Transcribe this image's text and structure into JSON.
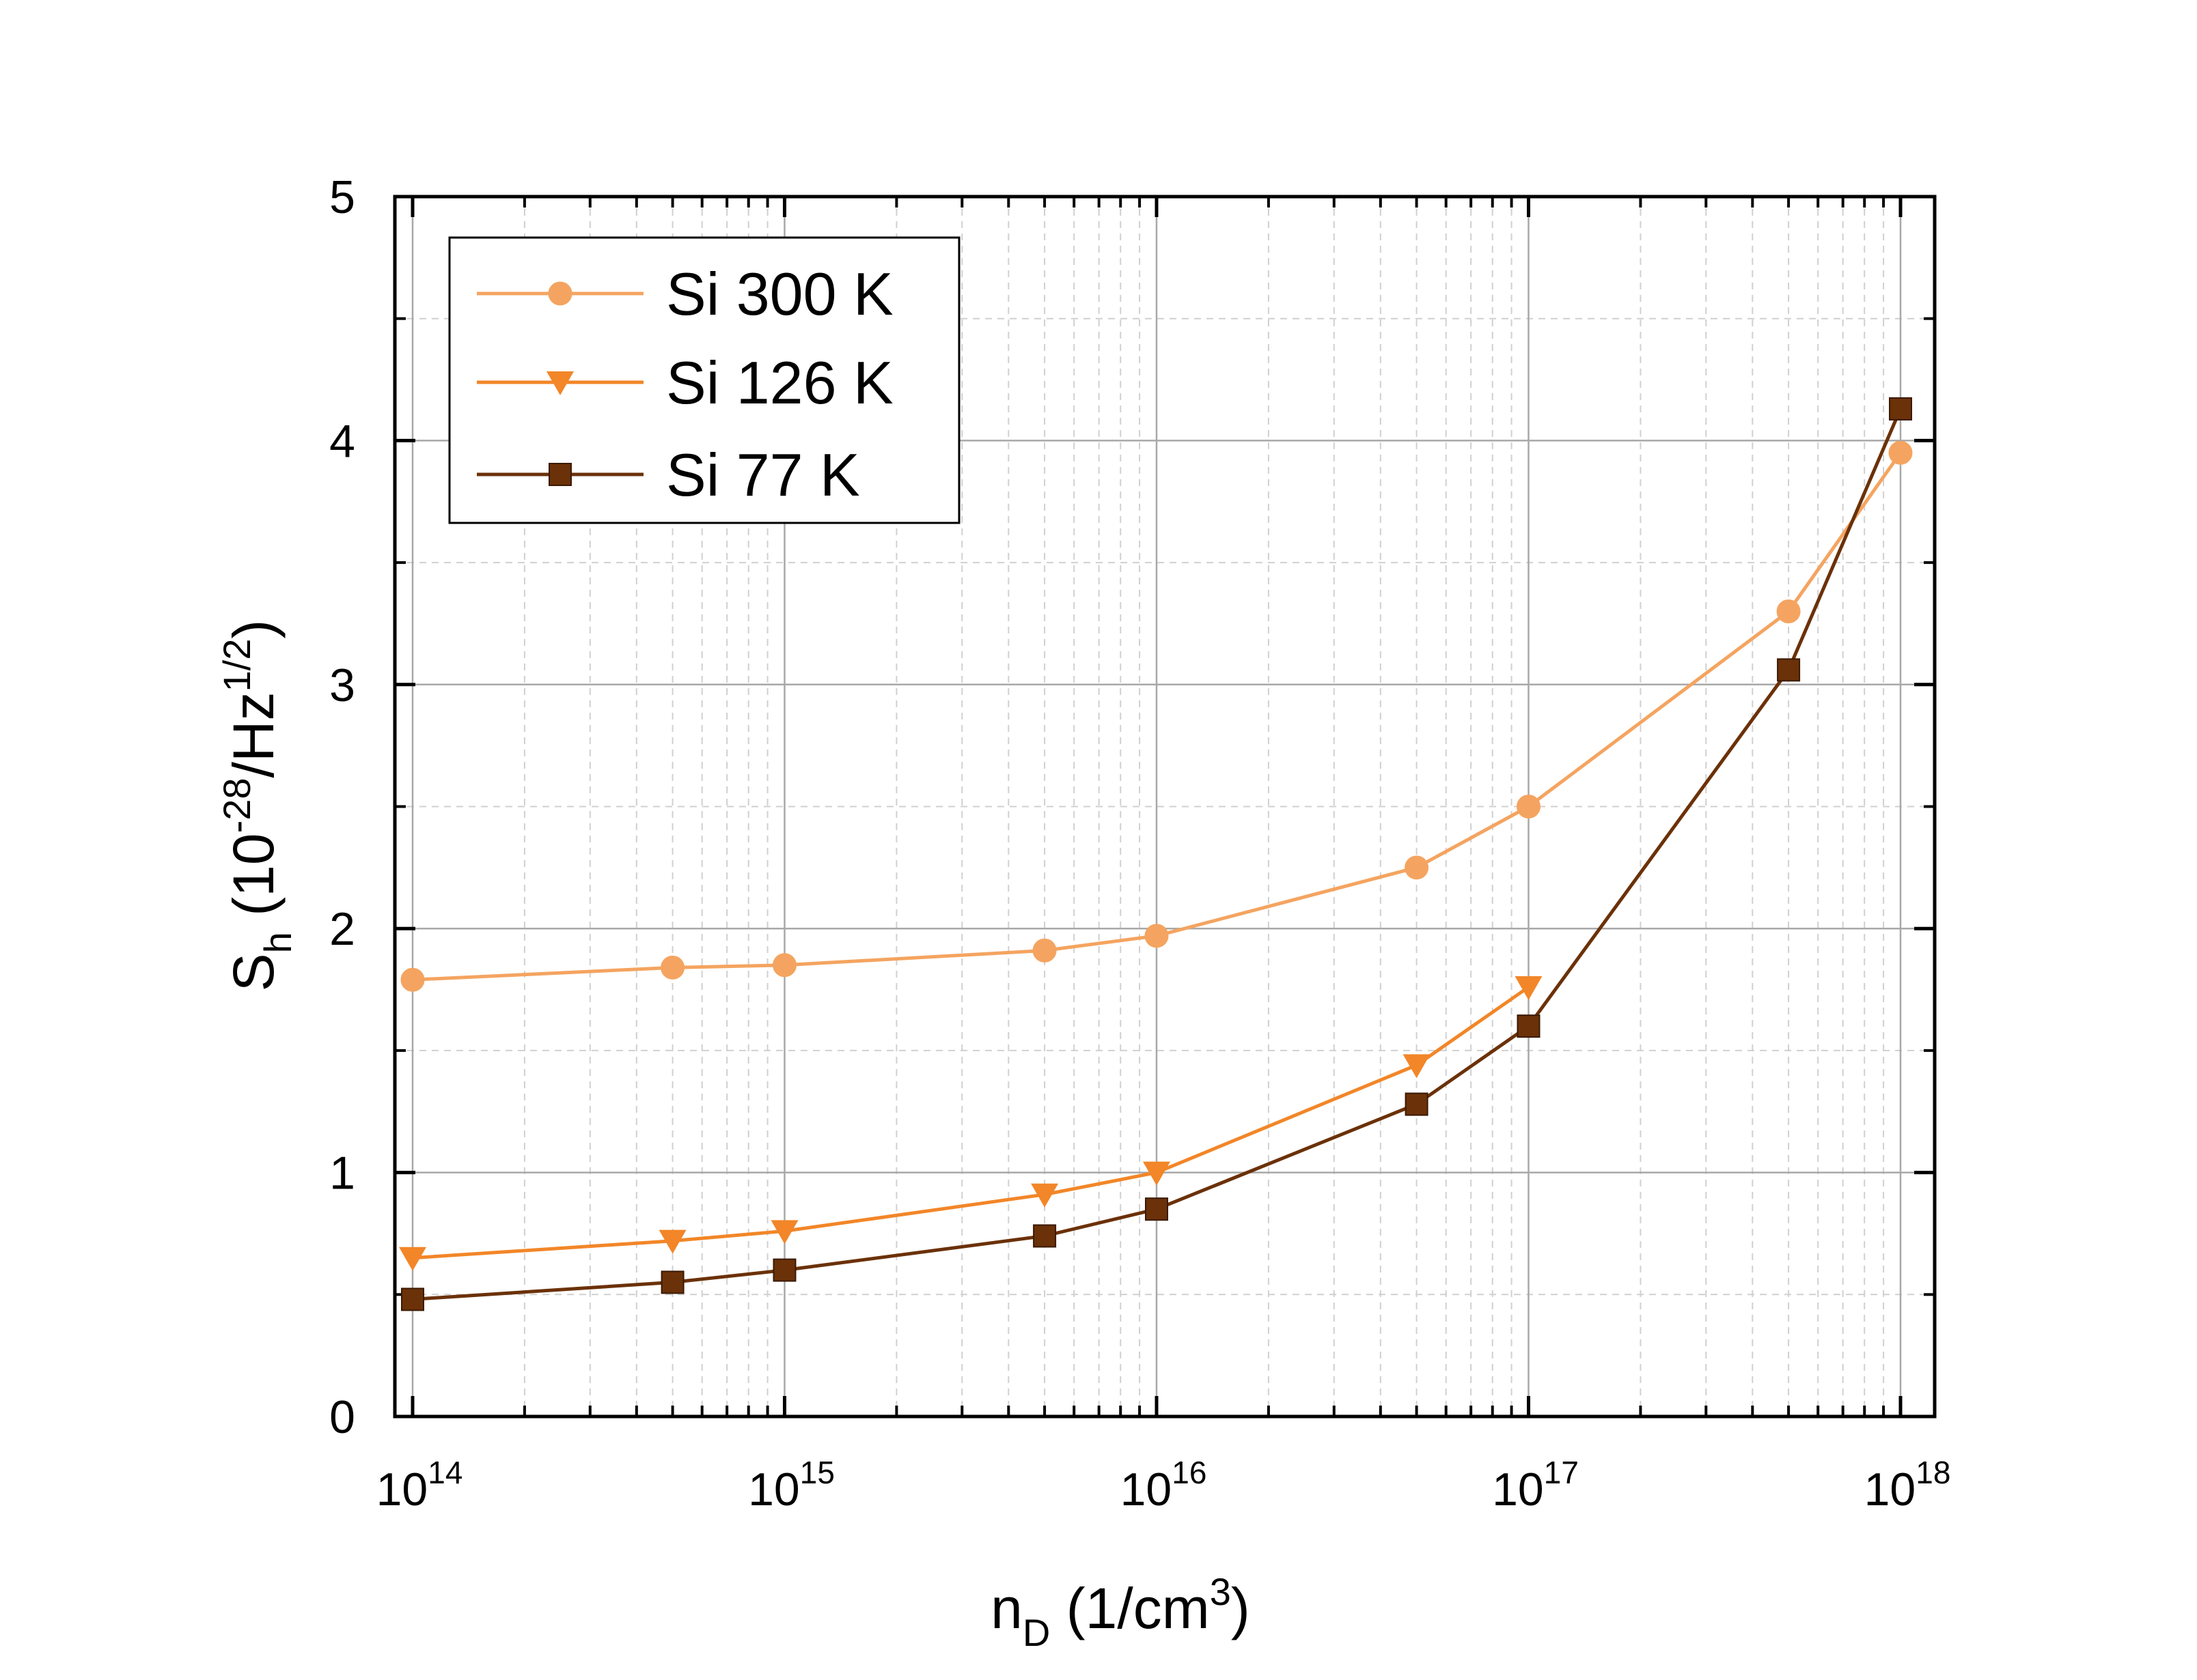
{
  "chart_data": {
    "type": "line",
    "title": "",
    "xscale": "log",
    "xlim": [
      100000000000000.0,
      1e+18
    ],
    "ylim": [
      0,
      5
    ],
    "xlabel": {
      "base": "n",
      "sub": "D",
      "rest": " (1/cm",
      "sup": "3",
      "end": ")"
    },
    "ylabel": {
      "base": "S",
      "sub": "h",
      "rest": " (10",
      "sup": "-28",
      "mid": "/Hz",
      "sup2": "1/2",
      "end": ")"
    },
    "x_ticks": [
      {
        "base": "10",
        "exp": "14",
        "value": 100000000000000.0
      },
      {
        "base": "10",
        "exp": "15",
        "value": 1000000000000000.0
      },
      {
        "base": "10",
        "exp": "16",
        "value": 1e+16
      },
      {
        "base": "10",
        "exp": "17",
        "value": 1e+17
      },
      {
        "base": "10",
        "exp": "18",
        "value": 1e+18
      }
    ],
    "y_ticks": [
      {
        "label": "0",
        "value": 0
      },
      {
        "label": "1",
        "value": 1
      },
      {
        "label": "2",
        "value": 2
      },
      {
        "label": "3",
        "value": 3
      },
      {
        "label": "4",
        "value": 4
      },
      {
        "label": "5",
        "value": 5
      }
    ],
    "grid": true,
    "legend_position": "top-left",
    "series": [
      {
        "name": "Si 300 K",
        "color": "#F4A460",
        "marker": "circle",
        "x": [
          100000000000000.0,
          500000000000000.0,
          1000000000000000.0,
          5000000000000000.0,
          1e+16,
          5e+16,
          1e+17,
          5e+17,
          1e+18
        ],
        "y": [
          1.79,
          1.84,
          1.85,
          1.91,
          1.97,
          2.25,
          2.5,
          3.3,
          3.95
        ]
      },
      {
        "name": "Si 126 K",
        "color": "#F28628",
        "marker": "triangle-down",
        "x": [
          100000000000000.0,
          500000000000000.0,
          1000000000000000.0,
          5000000000000000.0,
          1e+16,
          5e+16,
          1e+17
        ],
        "y": [
          0.65,
          0.72,
          0.76,
          0.91,
          1.0,
          1.44,
          1.76
        ]
      },
      {
        "name": "Si 77 K",
        "color": "#6B3108",
        "marker": "square",
        "x": [
          100000000000000.0,
          500000000000000.0,
          1000000000000000.0,
          5000000000000000.0,
          1e+16,
          5e+16,
          1e+17,
          5e+17,
          1e+18
        ],
        "y": [
          0.48,
          0.55,
          0.6,
          0.74,
          0.85,
          1.28,
          1.6,
          3.06,
          4.13
        ]
      }
    ]
  }
}
